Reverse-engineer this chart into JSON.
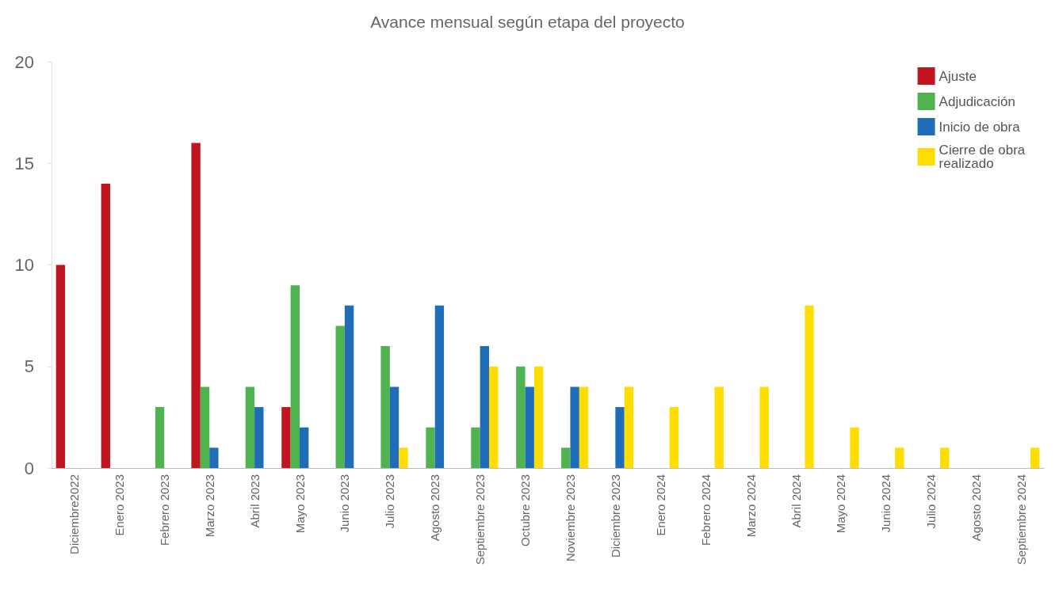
{
  "chart_data": {
    "type": "bar",
    "title": "Avance mensual según etapa del proyecto",
    "categories": [
      "Diciembre2022",
      "Enero 2023",
      "Febrero 2023",
      "Marzo 2023",
      "Abril 2023",
      "Mayo 2023",
      "Junio 2023",
      "Julio 2023",
      "Agosto 2023",
      "Septiembre 2023",
      "Octubre 2023",
      "Noviembre 2023",
      "Diciembre 2023",
      "Enero 2024",
      "Febrero 2024",
      "Marzo 2024",
      "Abril 2024",
      "Mayo 2024",
      "Junio 2024",
      "Julio 2024",
      "Agosto 2024",
      "Septiembre 2024"
    ],
    "series": [
      {
        "name": "Ajuste",
        "color": "#c0141e",
        "values": [
          10,
          14,
          null,
          16,
          null,
          3,
          null,
          null,
          null,
          null,
          null,
          null,
          null,
          null,
          null,
          null,
          null,
          null,
          null,
          null,
          null,
          null
        ]
      },
      {
        "name": "Adjudicación",
        "color": "#4fb34f",
        "values": [
          null,
          null,
          3,
          4,
          4,
          9,
          7,
          6,
          2,
          2,
          5,
          1,
          null,
          null,
          null,
          null,
          null,
          null,
          null,
          null,
          null,
          null
        ]
      },
      {
        "name": "Inicio de obra",
        "color": "#1f6db8",
        "values": [
          null,
          null,
          null,
          1,
          3,
          2,
          8,
          4,
          8,
          6,
          4,
          4,
          3,
          null,
          null,
          null,
          null,
          null,
          null,
          null,
          null,
          null
        ]
      },
      {
        "name": "Cierre de obra realizado",
        "color": "#ffdd00",
        "values": [
          null,
          null,
          null,
          null,
          null,
          null,
          null,
          1,
          null,
          5,
          5,
          4,
          4,
          3,
          4,
          4,
          8,
          2,
          1,
          1,
          null,
          1
        ]
      }
    ],
    "ylim": [
      0,
      20
    ],
    "yticks": [
      0,
      5,
      10,
      15,
      20
    ],
    "grid": false,
    "legend": "top right"
  }
}
